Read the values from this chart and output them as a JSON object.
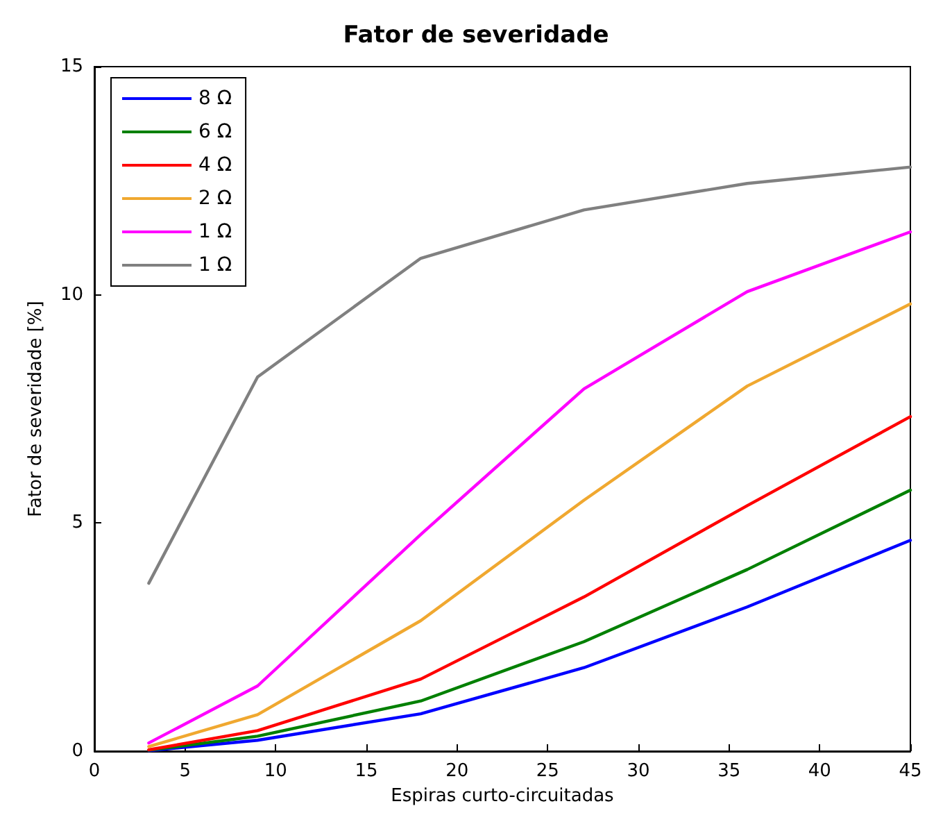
{
  "chart_data": {
    "type": "line",
    "title": "Fator de severidade",
    "xlabel": "Espiras curto-circuitadas",
    "ylabel": "Fator de severidade [%]",
    "x": [
      3,
      9,
      18,
      27,
      36,
      45
    ],
    "series": [
      {
        "name": "8 Ω",
        "color": "#0000ff",
        "values": [
          0.01,
          0.24,
          0.82,
          1.83,
          3.16,
          4.62
        ]
      },
      {
        "name": "6 Ω",
        "color": "#008000",
        "values": [
          0.02,
          0.33,
          1.1,
          2.4,
          3.98,
          5.72
        ]
      },
      {
        "name": "4 Ω",
        "color": "#ff0000",
        "values": [
          0.03,
          0.45,
          1.58,
          3.38,
          5.38,
          7.33
        ]
      },
      {
        "name": "2 Ω",
        "color": "#f0a830",
        "values": [
          0.1,
          0.8,
          2.86,
          5.5,
          8.0,
          9.8
        ]
      },
      {
        "name": "1 Ω",
        "color": "#ff00ff",
        "values": [
          0.18,
          1.43,
          4.75,
          7.94,
          10.07,
          11.38
        ]
      },
      {
        "name": "1 Ω",
        "color": "#808080",
        "values": [
          3.68,
          8.2,
          10.8,
          11.86,
          12.44,
          12.8
        ]
      }
    ],
    "xlim": [
      0,
      45
    ],
    "xticks": [
      0,
      5,
      10,
      15,
      20,
      25,
      30,
      35,
      40,
      45
    ],
    "ylim": [
      0,
      15
    ],
    "yticks": [
      0,
      5,
      10,
      15
    ],
    "grid": false,
    "legend": "top left",
    "marker": "none",
    "line_style": "solid"
  }
}
